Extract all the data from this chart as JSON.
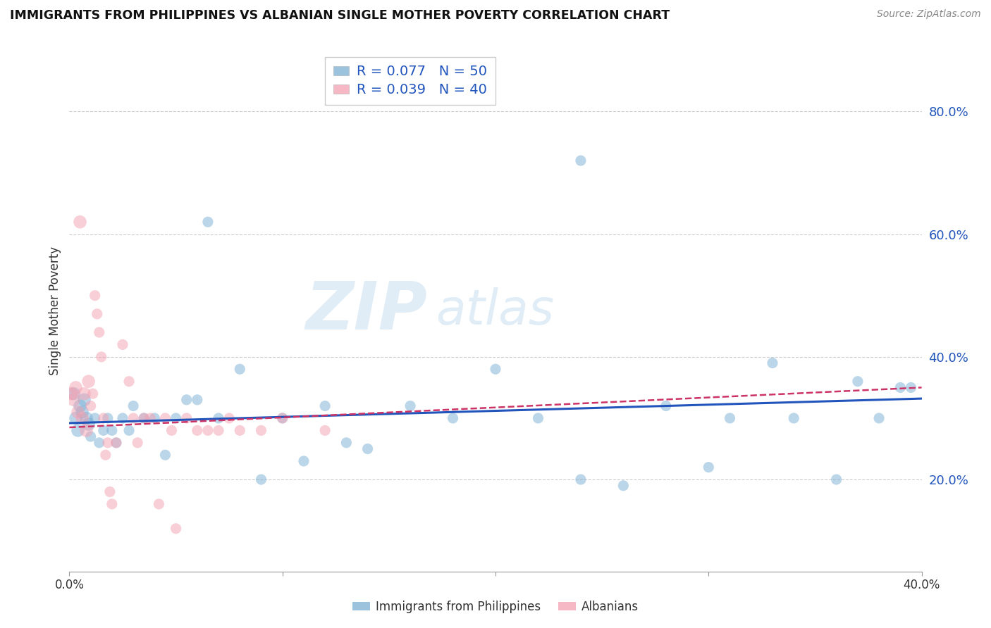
{
  "title": "IMMIGRANTS FROM PHILIPPINES VS ALBANIAN SINGLE MOTHER POVERTY CORRELATION CHART",
  "source": "Source: ZipAtlas.com",
  "ylabel": "Single Mother Poverty",
  "blue_color": "#7bafd4",
  "pink_color": "#f4a0b0",
  "blue_line_color": "#2255bb",
  "pink_line_color": "#cc3366",
  "watermark_zip": "ZIP",
  "watermark_atlas": "atlas",
  "xlim": [
    0.0,
    0.4
  ],
  "ylim": [
    0.05,
    0.9
  ],
  "gridline_y": [
    0.2,
    0.4,
    0.6,
    0.8
  ],
  "philippines_x": [
    0.002,
    0.003,
    0.004,
    0.005,
    0.006,
    0.007,
    0.008,
    0.009,
    0.01,
    0.012,
    0.014,
    0.016,
    0.018,
    0.02,
    0.022,
    0.025,
    0.028,
    0.03,
    0.035,
    0.04,
    0.045,
    0.05,
    0.055,
    0.06,
    0.065,
    0.07,
    0.08,
    0.09,
    0.1,
    0.11,
    0.12,
    0.13,
    0.14,
    0.16,
    0.18,
    0.2,
    0.22,
    0.24,
    0.28,
    0.31,
    0.33,
    0.34,
    0.36,
    0.37,
    0.38,
    0.39,
    0.24,
    0.26,
    0.3,
    0.395
  ],
  "philippines_y": [
    0.34,
    0.3,
    0.28,
    0.32,
    0.31,
    0.33,
    0.3,
    0.29,
    0.27,
    0.3,
    0.26,
    0.28,
    0.3,
    0.28,
    0.26,
    0.3,
    0.28,
    0.32,
    0.3,
    0.3,
    0.24,
    0.3,
    0.33,
    0.33,
    0.62,
    0.3,
    0.38,
    0.2,
    0.3,
    0.23,
    0.32,
    0.26,
    0.25,
    0.32,
    0.3,
    0.38,
    0.3,
    0.72,
    0.32,
    0.3,
    0.39,
    0.3,
    0.2,
    0.36,
    0.3,
    0.35,
    0.2,
    0.19,
    0.22,
    0.35
  ],
  "albania_x": [
    0.001,
    0.002,
    0.003,
    0.004,
    0.005,
    0.006,
    0.007,
    0.008,
    0.009,
    0.01,
    0.011,
    0.012,
    0.013,
    0.014,
    0.015,
    0.016,
    0.017,
    0.018,
    0.019,
    0.02,
    0.022,
    0.025,
    0.028,
    0.03,
    0.032,
    0.035,
    0.038,
    0.042,
    0.045,
    0.048,
    0.05,
    0.055,
    0.06,
    0.065,
    0.07,
    0.075,
    0.08,
    0.09,
    0.1,
    0.12
  ],
  "albania_y": [
    0.34,
    0.33,
    0.35,
    0.31,
    0.62,
    0.3,
    0.34,
    0.28,
    0.36,
    0.32,
    0.34,
    0.5,
    0.47,
    0.44,
    0.4,
    0.3,
    0.24,
    0.26,
    0.18,
    0.16,
    0.26,
    0.42,
    0.36,
    0.3,
    0.26,
    0.3,
    0.3,
    0.16,
    0.3,
    0.28,
    0.12,
    0.3,
    0.28,
    0.28,
    0.28,
    0.3,
    0.28,
    0.28,
    0.3,
    0.28
  ],
  "phil_trend_x": [
    0.0,
    0.4
  ],
  "phil_trend_y": [
    0.292,
    0.332
  ],
  "alb_trend_x": [
    0.0,
    0.4
  ],
  "alb_trend_y": [
    0.285,
    0.35
  ]
}
